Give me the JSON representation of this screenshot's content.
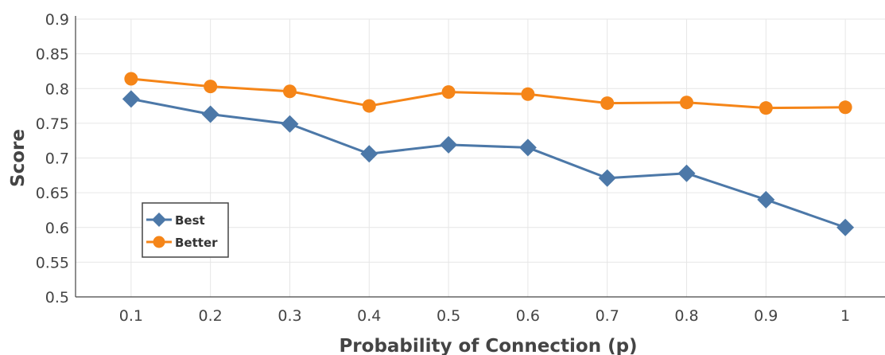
{
  "chart_data": {
    "type": "line",
    "title": "",
    "xlabel": "Probability of Connection (p)",
    "ylabel": "Score",
    "x": [
      0.1,
      0.2,
      0.3,
      0.4,
      0.5,
      0.6,
      0.7,
      0.8,
      0.9,
      1
    ],
    "x_tick_labels": [
      "0.1",
      "0.2",
      "0.3",
      "0.4",
      "0.5",
      "0.6",
      "0.7",
      "0.8",
      "0.9",
      "1"
    ],
    "y_ticks": [
      0.5,
      0.55,
      0.6,
      0.65,
      0.7,
      0.75,
      0.8,
      0.85,
      0.9
    ],
    "y_tick_labels": [
      "0.5",
      "0.55",
      "0.6",
      "0.65",
      "0.7",
      "0.75",
      "0.8",
      "0.85",
      "0.9"
    ],
    "xlim": [
      0.03,
      1.05
    ],
    "ylim": [
      0.5,
      0.9
    ],
    "grid": true,
    "legend_position": "lower-left",
    "series": [
      {
        "name": "Best",
        "marker": "diamond",
        "color": "#4c78a8",
        "values": [
          0.785,
          0.763,
          0.749,
          0.706,
          0.719,
          0.715,
          0.671,
          0.678,
          0.64,
          0.6
        ]
      },
      {
        "name": "Better",
        "marker": "circle",
        "color": "#f58518",
        "values": [
          0.814,
          0.803,
          0.796,
          0.775,
          0.795,
          0.792,
          0.779,
          0.78,
          0.772,
          0.773
        ]
      }
    ]
  }
}
